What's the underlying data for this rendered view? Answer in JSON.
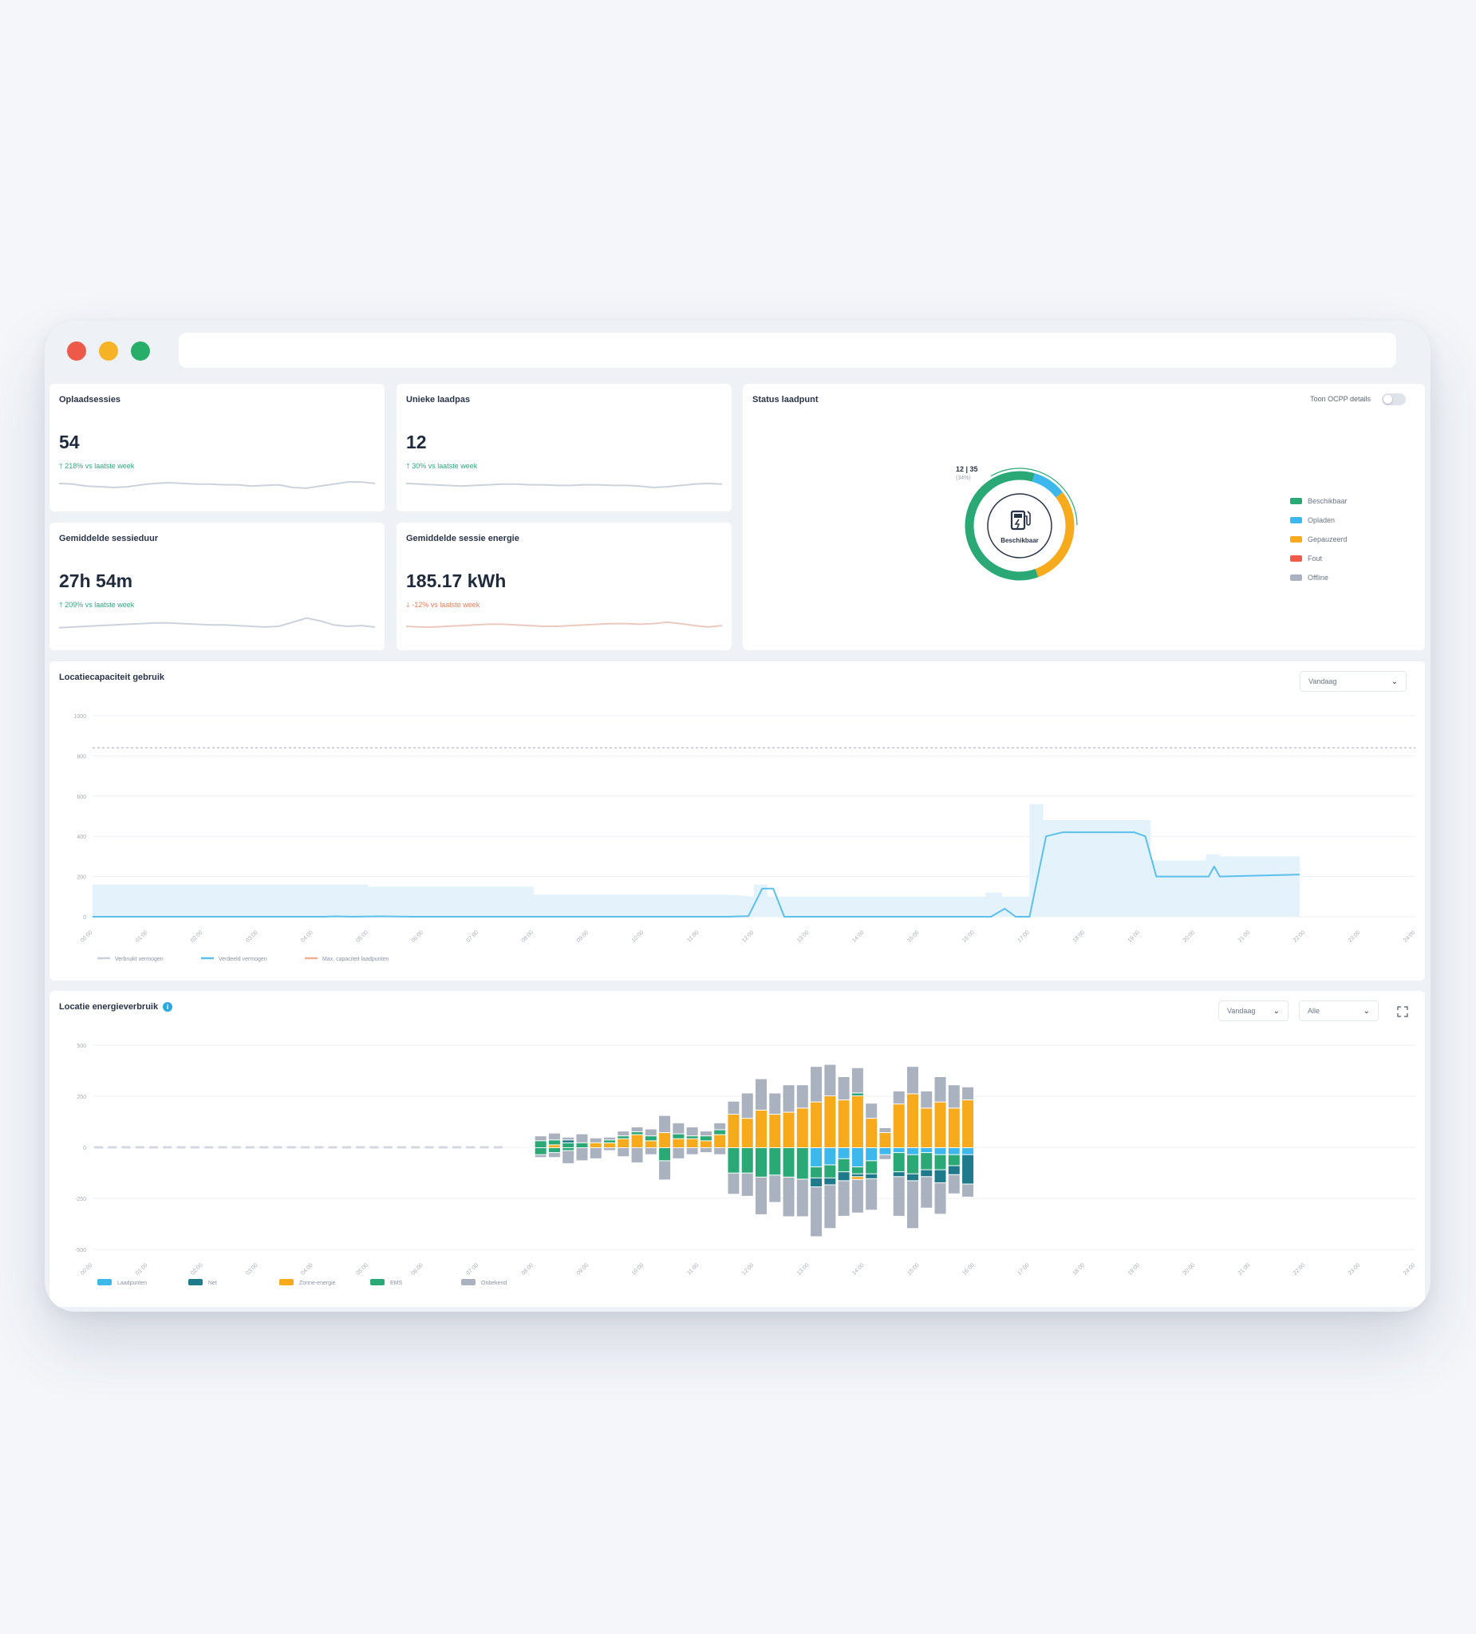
{
  "window": {
    "traffic_lights": [
      "#ee5a4a",
      "#f6b325",
      "#29ae6a"
    ],
    "url": ""
  },
  "kpis": [
    {
      "title": "Oplaadsessies",
      "value": "54",
      "change": "218% vs laatste week",
      "trend": "up",
      "spark_color": "#ccd2dc",
      "spark": [
        10,
        9.5,
        8,
        7.5,
        7,
        7.5,
        9,
        10,
        10.5,
        10,
        9.5,
        9.5,
        9,
        9,
        8,
        8.5,
        9,
        7,
        6.5,
        8,
        9.5,
        11,
        11,
        10
      ]
    },
    {
      "title": "Unieke laadpas",
      "value": "12",
      "change": "30% vs laatste week",
      "trend": "up",
      "spark_color": "#ccd2dc",
      "spark": [
        10,
        9.5,
        9,
        8.5,
        8,
        8.5,
        9,
        9.5,
        9.5,
        9,
        9,
        8.5,
        8.5,
        9,
        9,
        8.5,
        8.5,
        8,
        7,
        7.5,
        8.5,
        9.5,
        10,
        9.5
      ]
    },
    {
      "title": "Gemiddelde sessieduur",
      "value": "27h 54m",
      "change": "209% vs laatste week",
      "trend": "up",
      "spark_color": "#ccd2dc",
      "spark": [
        6,
        6.5,
        7,
        7.5,
        8,
        8.5,
        9,
        9.5,
        9.5,
        9,
        8.5,
        8,
        8,
        7.5,
        7,
        6.5,
        7,
        10,
        13,
        11,
        8,
        7,
        7.5,
        6.5
      ]
    },
    {
      "title": "Gemiddelde sessie energie",
      "value": "185.17 kWh",
      "change": "-12% vs laatste week",
      "trend": "down",
      "spark_color": "#ecc9bf",
      "spark": [
        7,
        6.5,
        6.5,
        7,
        7.5,
        8,
        8.5,
        8.5,
        8,
        7.5,
        7,
        7,
        7.5,
        8,
        8.5,
        9,
        9,
        8.5,
        9,
        10,
        9,
        7.5,
        6.5,
        7.5
      ]
    }
  ],
  "status": {
    "title": "Status laadpunt",
    "toggle_label": "Toon OCPP details",
    "center_label": "Beschikbaar",
    "tooltip_value": "12 | 35",
    "tooltip_percent": "(34%)",
    "segments": [
      {
        "name": "Beschikbaar",
        "color": "#2aa876",
        "value": 60
      },
      {
        "name": "Opladen",
        "color": "#3db8ec",
        "value": 10
      },
      {
        "name": "Gepauzeerd",
        "color": "#f6aa1c",
        "value": 30
      },
      {
        "name": "Fout",
        "color": "#ef5b48",
        "value": 0
      },
      {
        "name": "Offline",
        "color": "#aab2bf",
        "value": 0
      }
    ]
  },
  "capacity": {
    "title": "Locatiecapaciteit gebruik",
    "period": "Vandaag",
    "y_ticks": [
      "1000",
      "800",
      "600",
      "400",
      "200",
      "0"
    ],
    "x_ticks": [
      "00:00",
      "01:00",
      "02:00",
      "03:00",
      "04:00",
      "05:00",
      "06:00",
      "07:00",
      "08:00",
      "09:00",
      "10:00",
      "11:00",
      "12:00",
      "13:00",
      "14:00",
      "15:00",
      "16:00",
      "17:00",
      "18:00",
      "19:00",
      "20:00",
      "21:00",
      "22:00",
      "23:00",
      "24:00"
    ],
    "legend": [
      {
        "name": "Verbruikt vermogen",
        "color": "#c9d0da"
      },
      {
        "name": "Verdeeld vermogen",
        "color": "#5bc0eb"
      },
      {
        "name": "Max. capaciteit laadpunten",
        "color": "#f0b090"
      }
    ],
    "chart_data": {
      "type": "area",
      "ylim": [
        0,
        1000
      ],
      "capacity_limit": 840,
      "allocated_steps": [
        [
          0,
          160
        ],
        [
          5,
          160
        ],
        [
          5,
          150
        ],
        [
          8,
          150
        ],
        [
          8,
          110
        ],
        [
          11.5,
          110
        ],
        [
          11.5,
          110
        ],
        [
          12,
          100
        ],
        [
          12,
          160
        ],
        [
          12.25,
          160
        ],
        [
          12.25,
          100
        ],
        [
          16.2,
          100
        ],
        [
          16.2,
          120
        ],
        [
          16.5,
          120
        ],
        [
          16.5,
          100
        ],
        [
          17,
          100
        ],
        [
          17,
          560
        ],
        [
          17.25,
          560
        ],
        [
          17.25,
          480
        ],
        [
          19.2,
          480
        ],
        [
          19.2,
          280
        ],
        [
          20.2,
          280
        ],
        [
          20.2,
          310
        ],
        [
          20.45,
          310
        ],
        [
          20.45,
          300
        ],
        [
          21.9,
          300
        ],
        [
          21.9,
          0
        ]
      ],
      "used_line": [
        [
          0,
          0
        ],
        [
          4.2,
          0
        ],
        [
          4.4,
          2
        ],
        [
          4.7,
          0
        ],
        [
          5.2,
          2
        ],
        [
          5.8,
          0
        ],
        [
          11.5,
          0
        ],
        [
          11.9,
          3
        ],
        [
          12.15,
          140
        ],
        [
          12.35,
          140
        ],
        [
          12.55,
          0
        ],
        [
          16.3,
          0
        ],
        [
          16.55,
          40
        ],
        [
          16.75,
          0
        ],
        [
          17,
          0
        ],
        [
          17.3,
          400
        ],
        [
          17.6,
          420
        ],
        [
          18.9,
          420
        ],
        [
          19.1,
          400
        ],
        [
          19.3,
          200
        ],
        [
          20.25,
          200
        ],
        [
          20.35,
          250
        ],
        [
          20.45,
          200
        ],
        [
          21.9,
          210
        ]
      ]
    }
  },
  "energy": {
    "title": "Locatie energieverbruik",
    "period": "Vandaag",
    "filter": "Alle",
    "y_ticks": [
      "500",
      "250",
      "0",
      "-250",
      "-500"
    ],
    "x_ticks": [
      "00:00",
      "01:00",
      "02:00",
      "03:00",
      "04:00",
      "05:00",
      "06:00",
      "07:00",
      "08:00",
      "09:00",
      "10:00",
      "11:00",
      "12:00",
      "13:00",
      "14:00",
      "15:00",
      "16:00",
      "17:00",
      "18:00",
      "19:00",
      "20:00",
      "21:00",
      "22:00",
      "23:00",
      "24:00"
    ],
    "legend": [
      {
        "name": "Laadpunten",
        "color": "#3db8ec"
      },
      {
        "name": "Net",
        "color": "#1f7a8c"
      },
      {
        "name": "Zonne-energie",
        "color": "#f6aa1c"
      },
      {
        "name": "EMS",
        "color": "#2aa876"
      },
      {
        "name": "Onbekend",
        "color": "#aab2bf"
      }
    ],
    "chart_data": {
      "type": "bar",
      "ylim": [
        -500,
        500
      ],
      "bars": [
        {
          "h": 8.0,
          "g": [
            20,
            10
          ],
          "s": [
            0,
            0
          ],
          "l": [
            0,
            0
          ],
          "e": [
            30,
            30
          ],
          "n": [
            0,
            0
          ]
        },
        {
          "h": 8.25,
          "g": [
            30,
            20
          ],
          "s": [
            10,
            0
          ],
          "l": [
            0,
            0
          ],
          "e": [
            20,
            20
          ],
          "n": [
            0,
            0
          ]
        },
        {
          "h": 8.5,
          "g": [
            10,
            60
          ],
          "s": [
            0,
            0
          ],
          "l": [
            0,
            0
          ],
          "e": [
            20,
            10
          ],
          "n": [
            10,
            0
          ]
        },
        {
          "h": 8.75,
          "g": [
            40,
            60
          ],
          "s": [
            0,
            0
          ],
          "l": [
            0,
            0
          ],
          "e": [
            20,
            0
          ],
          "n": [
            0,
            0
          ]
        },
        {
          "h": 9.0,
          "g": [
            20,
            50
          ],
          "s": [
            20,
            0
          ],
          "l": [
            0,
            0
          ],
          "e": [
            0,
            0
          ],
          "n": [
            0,
            0
          ]
        },
        {
          "h": 9.25,
          "g": [
            10,
            10
          ],
          "s": [
            20,
            0
          ],
          "l": [
            0,
            0
          ],
          "e": [
            10,
            0
          ],
          "n": [
            0,
            0
          ]
        },
        {
          "h": 9.5,
          "g": [
            20,
            40
          ],
          "s": [
            40,
            0
          ],
          "l": [
            0,
            0
          ],
          "e": [
            10,
            0
          ],
          "n": [
            0,
            0
          ]
        },
        {
          "h": 9.75,
          "g": [
            20,
            70
          ],
          "s": [
            60,
            0
          ],
          "l": [
            0,
            0
          ],
          "e": [
            10,
            0
          ],
          "n": [
            0,
            0
          ]
        },
        {
          "h": 10.0,
          "g": [
            30,
            30
          ],
          "s": [
            30,
            0
          ],
          "l": [
            0,
            0
          ],
          "e": [
            20,
            0
          ],
          "n": [
            0,
            0
          ]
        },
        {
          "h": 10.25,
          "g": [
            80,
            90
          ],
          "s": [
            70,
            0
          ],
          "l": [
            0,
            0
          ],
          "e": [
            0,
            60
          ],
          "n": [
            0,
            0
          ]
        },
        {
          "h": 10.5,
          "g": [
            50,
            50
          ],
          "s": [
            40,
            0
          ],
          "l": [
            0,
            0
          ],
          "e": [
            20,
            0
          ],
          "n": [
            0,
            0
          ]
        },
        {
          "h": 10.75,
          "g": [
            40,
            30
          ],
          "s": [
            40,
            0
          ],
          "l": [
            0,
            0
          ],
          "e": [
            10,
            0
          ],
          "n": [
            0,
            0
          ]
        },
        {
          "h": 11.0,
          "g": [
            20,
            20
          ],
          "s": [
            30,
            0
          ],
          "l": [
            0,
            0
          ],
          "e": [
            20,
            0
          ],
          "n": [
            0,
            0
          ]
        },
        {
          "h": 11.25,
          "g": [
            30,
            30
          ],
          "s": [
            60,
            0
          ],
          "l": [
            0,
            0
          ],
          "e": [
            20,
            0
          ],
          "n": [
            0,
            0
          ]
        },
        {
          "h": 11.5,
          "g": [
            60,
            100
          ],
          "s": [
            160,
            0
          ],
          "l": [
            0,
            0
          ],
          "e": [
            0,
            120
          ],
          "n": [
            0,
            0
          ]
        },
        {
          "h": 11.75,
          "g": [
            120,
            110
          ],
          "s": [
            140,
            0
          ],
          "l": [
            0,
            0
          ],
          "e": [
            0,
            120
          ],
          "n": [
            0,
            0
          ]
        },
        {
          "h": 12.0,
          "g": [
            150,
            180
          ],
          "s": [
            180,
            0
          ],
          "l": [
            0,
            0
          ],
          "e": [
            0,
            140
          ],
          "n": [
            0,
            0
          ]
        },
        {
          "h": 12.25,
          "g": [
            100,
            130
          ],
          "s": [
            160,
            0
          ],
          "l": [
            0,
            0
          ],
          "e": [
            0,
            130
          ],
          "n": [
            0,
            0
          ]
        },
        {
          "h": 12.5,
          "g": [
            130,
            190
          ],
          "s": [
            170,
            0
          ],
          "l": [
            0,
            0
          ],
          "e": [
            0,
            140
          ],
          "n": [
            0,
            0
          ]
        },
        {
          "h": 12.75,
          "g": [
            110,
            180
          ],
          "s": [
            190,
            0
          ],
          "l": [
            0,
            0
          ],
          "e": [
            0,
            150
          ],
          "n": [
            0,
            0
          ]
        },
        {
          "h": 13.0,
          "g": [
            170,
            240
          ],
          "s": [
            220,
            0
          ],
          "l": [
            0,
            90
          ],
          "e": [
            0,
            50
          ],
          "n": [
            0,
            40
          ]
        },
        {
          "h": 13.25,
          "g": [
            150,
            210
          ],
          "s": [
            250,
            0
          ],
          "l": [
            0,
            80
          ],
          "e": [
            0,
            60
          ],
          "n": [
            0,
            30
          ]
        },
        {
          "h": 13.5,
          "g": [
            110,
            170
          ],
          "s": [
            230,
            0
          ],
          "l": [
            0,
            50
          ],
          "e": [
            0,
            60
          ],
          "n": [
            0,
            40
          ]
        },
        {
          "h": 13.75,
          "g": [
            120,
            160
          ],
          "s": [
            250,
            10
          ],
          "l": [
            0,
            90
          ],
          "e": [
            10,
            30
          ],
          "n": [
            0,
            10
          ]
        },
        {
          "h": 14.0,
          "g": [
            70,
            150
          ],
          "s": [
            140,
            0
          ],
          "l": [
            0,
            60
          ],
          "e": [
            0,
            60
          ],
          "n": [
            0,
            20
          ]
        },
        {
          "h": 14.25,
          "g": [
            20,
            20
          ],
          "s": [
            70,
            0
          ],
          "l": [
            0,
            30
          ],
          "e": [
            0,
            0
          ],
          "n": [
            0,
            0
          ]
        },
        {
          "h": 14.5,
          "g": [
            60,
            190
          ],
          "s": [
            210,
            0
          ],
          "l": [
            0,
            20
          ],
          "e": [
            0,
            90
          ],
          "n": [
            0,
            20
          ]
        },
        {
          "h": 14.75,
          "g": [
            130,
            230
          ],
          "s": [
            260,
            0
          ],
          "l": [
            0,
            30
          ],
          "e": [
            0,
            90
          ],
          "n": [
            0,
            30
          ]
        },
        {
          "h": 15.0,
          "g": [
            80,
            150
          ],
          "s": [
            190,
            0
          ],
          "l": [
            0,
            20
          ],
          "e": [
            0,
            80
          ],
          "n": [
            0,
            30
          ]
        },
        {
          "h": 15.25,
          "g": [
            120,
            150
          ],
          "s": [
            220,
            0
          ],
          "l": [
            0,
            30
          ],
          "e": [
            0,
            70
          ],
          "n": [
            0,
            60
          ]
        },
        {
          "h": 15.5,
          "g": [
            110,
            90
          ],
          "s": [
            190,
            0
          ],
          "l": [
            0,
            30
          ],
          "e": [
            0,
            50
          ],
          "n": [
            0,
            40
          ]
        },
        {
          "h": 15.75,
          "g": [
            60,
            60
          ],
          "s": [
            230,
            0
          ],
          "l": [
            0,
            30
          ],
          "e": [
            0,
            0
          ],
          "n": [
            0,
            140
          ]
        }
      ]
    }
  }
}
